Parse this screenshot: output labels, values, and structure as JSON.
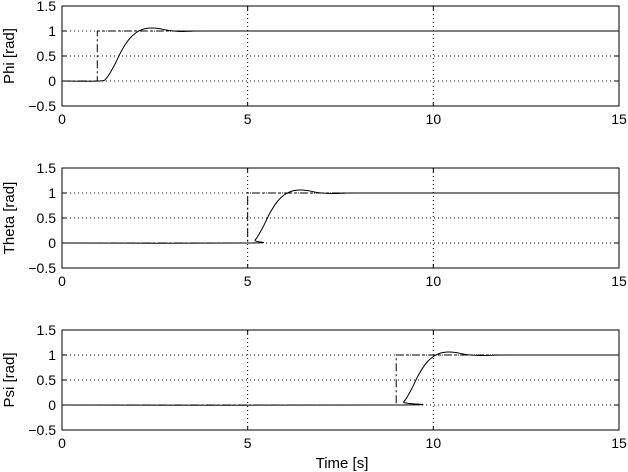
{
  "figure": {
    "xlabel": "Time [s]"
  },
  "chart_data": [
    {
      "type": "line",
      "ylabel": "Phi [rad]",
      "xlim": [
        0,
        15
      ],
      "ylim": [
        -0.5,
        1.5
      ],
      "xticks": [
        0,
        5,
        10,
        15
      ],
      "yticks": [
        -0.5,
        0,
        0.5,
        1,
        1.5
      ],
      "xtick_labels": [
        "0",
        "5",
        "10",
        "15"
      ],
      "ytick_labels": [
        "−0.5",
        "0",
        "0.5",
        "1",
        "1.5"
      ],
      "grid": true,
      "series": [
        {
          "role": "reference",
          "style": "dash-dot",
          "x": [
            0,
            0.95,
            0.95,
            15
          ],
          "y": [
            0,
            0,
            1,
            1
          ]
        },
        {
          "role": "response",
          "style": "solid",
          "x": [
            0,
            1.0,
            1.2,
            1.4,
            1.6,
            1.8,
            2.0,
            2.2,
            2.4,
            2.6,
            2.8,
            3.0,
            3.2,
            3.5,
            4.0,
            15
          ],
          "y": [
            0,
            0,
            0.06,
            0.3,
            0.6,
            0.83,
            0.97,
            1.04,
            1.06,
            1.05,
            1.02,
            1.0,
            0.99,
            0.995,
            1.0,
            1.0
          ]
        }
      ]
    },
    {
      "type": "line",
      "ylabel": "Theta [rad]",
      "xlim": [
        0,
        15
      ],
      "ylim": [
        -0.5,
        1.5
      ],
      "xticks": [
        0,
        5,
        10,
        15
      ],
      "yticks": [
        -0.5,
        0,
        0.5,
        1,
        1.5
      ],
      "xtick_labels": [
        "0",
        "5",
        "10",
        "15"
      ],
      "ytick_labels": [
        "−0.5",
        "0",
        "0.5",
        "1",
        "1.5"
      ],
      "grid": true,
      "series": [
        {
          "role": "reference",
          "style": "dash-dot",
          "x": [
            0,
            5.0,
            5.0,
            15
          ],
          "y": [
            0,
            0,
            1,
            1
          ]
        },
        {
          "role": "response",
          "style": "solid",
          "x": [
            0,
            5.0,
            5.2,
            5.4,
            5.6,
            5.8,
            6.0,
            6.2,
            6.4,
            6.6,
            6.8,
            7.0,
            7.3,
            7.6,
            8.0,
            15
          ],
          "y": [
            0,
            0,
            0.06,
            0.3,
            0.6,
            0.83,
            0.97,
            1.04,
            1.06,
            1.05,
            1.02,
            1.0,
            0.99,
            0.995,
            1.0,
            1.0
          ]
        }
      ]
    },
    {
      "type": "line",
      "ylabel": "Psi [rad]",
      "xlim": [
        0,
        15
      ],
      "ylim": [
        -0.5,
        1.5
      ],
      "xticks": [
        0,
        5,
        10,
        15
      ],
      "yticks": [
        -0.5,
        0,
        0.5,
        1,
        1.5
      ],
      "xtick_labels": [
        "0",
        "5",
        "10",
        "15"
      ],
      "ytick_labels": [
        "−0.5",
        "0",
        "0.5",
        "1",
        "1.5"
      ],
      "grid": true,
      "series": [
        {
          "role": "reference",
          "style": "dash-dot",
          "x": [
            0,
            9.0,
            9.0,
            15
          ],
          "y": [
            0,
            0,
            1,
            1
          ]
        },
        {
          "role": "response",
          "style": "solid",
          "x": [
            0,
            9.0,
            9.2,
            9.4,
            9.6,
            9.8,
            10.0,
            10.2,
            10.4,
            10.6,
            10.8,
            11.0,
            11.3,
            11.6,
            12.0,
            15
          ],
          "y": [
            0,
            0,
            0.06,
            0.3,
            0.6,
            0.83,
            0.97,
            1.04,
            1.06,
            1.05,
            1.02,
            1.0,
            0.99,
            0.995,
            1.0,
            1.0
          ]
        }
      ]
    }
  ]
}
